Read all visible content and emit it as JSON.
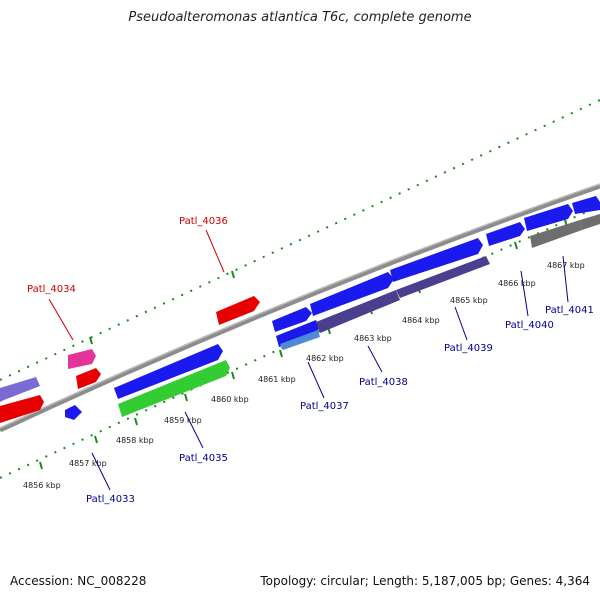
{
  "title": "Pseudoalteromonas atlantica T6c, complete genome",
  "footer": {
    "accession": "Accession: NC_008228",
    "summary": "Topology: circular; Length: 5,187,005 bp; Genes: 4,364"
  },
  "colors": {
    "forward_gene": "#1a1aee",
    "reverse_gene": "#4a3f8e",
    "red_gene": "#e60000",
    "green_gene": "#33cc33",
    "pink_gene": "#e6339a",
    "gray_gene": "#6e6e6e",
    "backbone": "#8c8c8c",
    "tick": "#1a8a1a",
    "label_blue": "#00008b",
    "label_red": "#cc0000"
  },
  "kbp_ticks": [
    "4856 kbp",
    "4857 kbp",
    "4858 kbp",
    "4859 kbp",
    "4860 kbp",
    "4861 kbp",
    "4862 kbp",
    "4863 kbp",
    "4864 kbp",
    "4865 kbp",
    "4866 kbp",
    "4867 kbp"
  ],
  "gene_labels": [
    "Patl_4033",
    "Patl_4034",
    "Patl_4035",
    "Patl_4036",
    "Patl_4037",
    "Patl_4038",
    "Patl_4039",
    "Patl_4040",
    "Patl_4041"
  ]
}
